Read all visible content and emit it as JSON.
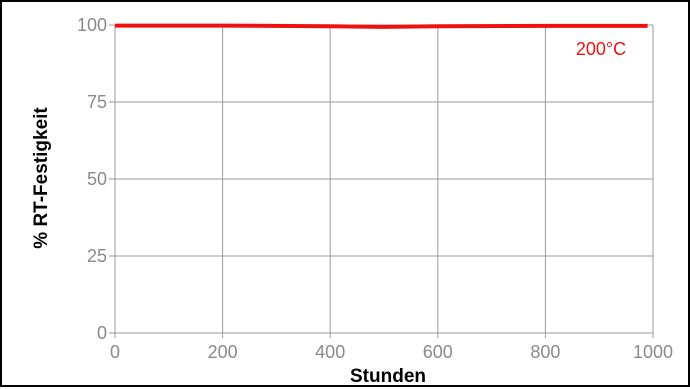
{
  "chart_data": {
    "type": "line",
    "xlabel": "Stunden",
    "ylabel": "% RT-Festigkeit",
    "xlim": [
      0,
      1000
    ],
    "ylim": [
      0,
      100
    ],
    "xticks": [
      0,
      200,
      400,
      600,
      800,
      1000
    ],
    "yticks": [
      0,
      25,
      50,
      75,
      100
    ],
    "grid": true,
    "series": [
      {
        "name": "200°C",
        "color": "#ee1111",
        "x": [
          0,
          200,
          400,
          500,
          600,
          800,
          990
        ],
        "y": [
          99.8,
          99.8,
          99.6,
          99.4,
          99.6,
          99.7,
          99.7
        ]
      }
    ]
  }
}
